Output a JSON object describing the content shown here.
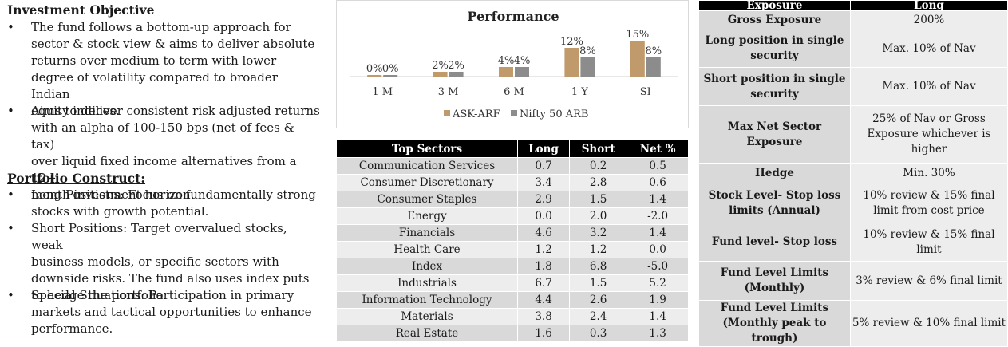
{
  "objective": {
    "heading": "Investment Objective",
    "bullets": [
      [
        "The fund follows a bottom-up approach for",
        "sector & stock view & aims to deliver absolute",
        "returns over medium to  term with lower",
        "degree of volatility compared to broader Indian",
        "equity indices."
      ],
      [
        "Aims to deliver consistent risk adjusted returns",
        "with an alpha of 100-150 bps (net of fees & tax)",
        "over liquid fixed income alternatives from a 12+",
        "month investment horizon."
      ]
    ]
  },
  "construct": {
    "heading": "Portfolio Construct:",
    "bullets": [
      [
        "Long Positions: Focus on fundamentally strong",
        "stocks with growth potential."
      ],
      [
        "Short Positions: Target overvalued stocks, weak",
        "business models, or specific sectors with",
        "downside risks. The fund also uses index puts",
        "to hedge the portfolio."
      ],
      [
        "Special Situations: Participation in primary",
        "markets and tactical opportunities to enhance",
        "performance."
      ]
    ]
  },
  "bullet_symbol": "•",
  "chart_data": {
    "type": "bar",
    "title": "Performance",
    "categories": [
      "1 M",
      "3 M",
      "6 M",
      "1 Y",
      "SI"
    ],
    "series": [
      {
        "name": "ASK-ARF",
        "values": [
          0,
          2,
          4,
          12,
          15
        ],
        "labels": [
          "0%",
          "2%",
          "4%",
          "12%",
          "15%"
        ],
        "color": "#c19a6b"
      },
      {
        "name": "Nifty 50 ARB",
        "values": [
          0,
          2,
          4,
          8,
          8
        ],
        "labels": [
          "0%",
          "2%",
          "4%",
          "8%",
          "8%"
        ],
        "color": "#8c8c8c"
      }
    ],
    "ylim": [
      0,
      16
    ],
    "grid": false,
    "legend": "bottom"
  },
  "sectors": {
    "headers": [
      "Top Sectors",
      "Long",
      "Short",
      "Net %"
    ],
    "rows": [
      [
        "Communication Services",
        "0.7",
        "0.2",
        "0.5"
      ],
      [
        "Consumer Discretionary",
        "3.4",
        "2.8",
        "0.6"
      ],
      [
        "Consumer Staples",
        "2.9",
        "1.5",
        "1.4"
      ],
      [
        "Energy",
        "0.0",
        "2.0",
        "-2.0"
      ],
      [
        "Financials",
        "4.6",
        "3.2",
        "1.4"
      ],
      [
        "Health Care",
        "1.2",
        "1.2",
        "0.0"
      ],
      [
        "Index",
        "1.8",
        "6.8",
        "-5.0"
      ],
      [
        "Industrials",
        "6.7",
        "1.5",
        "5.2"
      ],
      [
        "Information Technology",
        "4.4",
        "2.6",
        "1.9"
      ],
      [
        "Materials",
        "3.8",
        "2.4",
        "1.4"
      ],
      [
        "Real Estate",
        "1.6",
        "0.3",
        "1.3"
      ]
    ]
  },
  "exposure": {
    "headers": [
      "Exposure",
      "Long"
    ],
    "rows": [
      {
        "k": [
          "Gross Exposure"
        ],
        "v": [
          "200%"
        ]
      },
      {
        "k": [
          "Long position in single",
          "security"
        ],
        "v": [
          "Max. 10% of Nav"
        ]
      },
      {
        "k": [
          "Short position in single",
          "security"
        ],
        "v": [
          "Max. 10% of Nav"
        ]
      },
      {
        "k": [
          "Max Net Sector Exposure"
        ],
        "v": [
          "25% of Nav or Gross",
          "Exposure whichever is",
          "higher"
        ]
      },
      {
        "k": [
          "Hedge"
        ],
        "v": [
          "Min. 30%"
        ]
      },
      {
        "k": [
          "Stock Level- Stop loss",
          "limits (Annual)"
        ],
        "v": [
          "10% review & 15% final",
          "limit from cost price"
        ]
      },
      {
        "k": [
          "Fund level- Stop loss"
        ],
        "v": [
          "10% review & 15% final",
          "limit"
        ]
      },
      {
        "k": [
          "Fund Level Limits",
          "(Monthly)"
        ],
        "v": [
          "3% review & 6% final limit"
        ]
      },
      {
        "k": [
          "Fund Level Limits",
          "(Monthly peak to trough)"
        ],
        "v": [
          "5% review & 10% final limit"
        ]
      }
    ]
  }
}
